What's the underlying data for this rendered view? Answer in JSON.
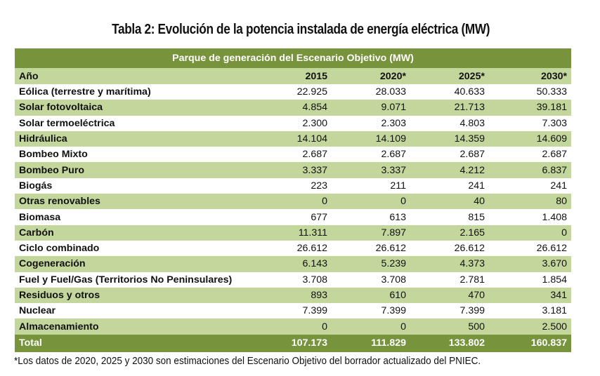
{
  "title": "Tabla 2: Evolución de la potencia instalada de energía eléctrica (MW)",
  "table": {
    "caption": "Parque de generación del Escenario Objetivo (MW)",
    "header": [
      "Año",
      "2015",
      "2020*",
      "2025*",
      "2030*"
    ],
    "rows": [
      [
        "Eólica (terrestre y marítima)",
        "22.925",
        "28.033",
        "40.633",
        "50.333"
      ],
      [
        "Solar fotovoltaica",
        "4.854",
        "9.071",
        "21.713",
        "39.181"
      ],
      [
        "Solar termoeléctrica",
        "2.300",
        "2.303",
        "4.803",
        "7.303"
      ],
      [
        "Hidráulica",
        "14.104",
        "14.109",
        "14.359",
        "14.609"
      ],
      [
        "Bombeo Mixto",
        "2.687",
        "2.687",
        "2.687",
        "2.687"
      ],
      [
        "Bombeo Puro",
        "3.337",
        "3.337",
        "4.212",
        "6.837"
      ],
      [
        "Biogás",
        "223",
        "211",
        "241",
        "241"
      ],
      [
        "Otras renovables",
        "0",
        "0",
        "40",
        "80"
      ],
      [
        "Biomasa",
        "677",
        "613",
        "815",
        "1.408"
      ],
      [
        "Carbón",
        "11.311",
        "7.897",
        "2.165",
        "0"
      ],
      [
        "Ciclo combinado",
        "26.612",
        "26.612",
        "26.612",
        "26.612"
      ],
      [
        "Cogeneración",
        "6.143",
        "5.239",
        "4.373",
        "3.670"
      ],
      [
        "Fuel y Fuel/Gas (Territorios No Peninsulares)",
        "3.708",
        "3.708",
        "2.781",
        "1.854"
      ],
      [
        "Residuos y otros",
        "893",
        "610",
        "470",
        "341"
      ],
      [
        "Nuclear",
        "7.399",
        "7.399",
        "7.399",
        "3.181"
      ],
      [
        "Almacenamiento",
        "0",
        "0",
        "500",
        "2.500"
      ]
    ],
    "total": [
      "Total",
      "107.173",
      "111.829",
      "133.802",
      "160.837"
    ]
  },
  "footnote": "*Los datos de 2020, 2025 y 2030 son estimaciones del Escenario Objetivo del borrador actualizado del PNIEC.",
  "colors": {
    "band_dark": "#77933c",
    "band_light": "#c3d69b"
  }
}
